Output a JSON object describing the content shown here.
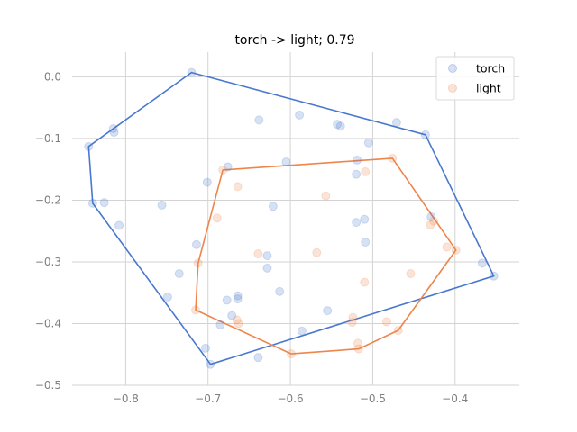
{
  "chart_data": {
    "type": "scatter",
    "title": "torch -> light; 0.79",
    "xlabel": "",
    "ylabel": "",
    "xlim": [
      -0.865,
      -0.322
    ],
    "ylim": [
      -0.5,
      0.04
    ],
    "xticks": [
      -0.8,
      -0.7,
      -0.6,
      -0.5,
      -0.4
    ],
    "xtick_labels": [
      "−0.8",
      "−0.7",
      "−0.6",
      "−0.5",
      "−0.4"
    ],
    "yticks": [
      0.0,
      -0.1,
      -0.2,
      -0.3,
      -0.4,
      -0.5
    ],
    "ytick_labels": [
      "0.0",
      "−0.1",
      "−0.2",
      "−0.3",
      "−0.4",
      "−0.5"
    ],
    "grid": true,
    "legend_position": "top-right",
    "series": [
      {
        "name": "torch",
        "color": "#4878cf",
        "points": [
          [
            -0.72,
            0.007
          ],
          [
            -0.845,
            -0.113
          ],
          [
            -0.815,
            -0.084
          ],
          [
            -0.814,
            -0.09
          ],
          [
            -0.84,
            -0.205
          ],
          [
            -0.826,
            -0.204
          ],
          [
            -0.808,
            -0.241
          ],
          [
            -0.756,
            -0.208
          ],
          [
            -0.638,
            -0.07
          ],
          [
            -0.589,
            -0.062
          ],
          [
            -0.543,
            -0.077
          ],
          [
            -0.539,
            -0.08
          ],
          [
            -0.471,
            -0.074
          ],
          [
            -0.436,
            -0.094
          ],
          [
            -0.505,
            -0.107
          ],
          [
            -0.519,
            -0.135
          ],
          [
            -0.52,
            -0.158
          ],
          [
            -0.605,
            -0.138
          ],
          [
            -0.701,
            -0.171
          ],
          [
            -0.676,
            -0.146
          ],
          [
            -0.621,
            -0.21
          ],
          [
            -0.52,
            -0.236
          ],
          [
            -0.51,
            -0.231
          ],
          [
            -0.429,
            -0.227
          ],
          [
            -0.714,
            -0.272
          ],
          [
            -0.509,
            -0.268
          ],
          [
            -0.628,
            -0.29
          ],
          [
            -0.628,
            -0.31
          ],
          [
            -0.735,
            -0.319
          ],
          [
            -0.749,
            -0.357
          ],
          [
            -0.664,
            -0.355
          ],
          [
            -0.664,
            -0.36
          ],
          [
            -0.677,
            -0.362
          ],
          [
            -0.613,
            -0.348
          ],
          [
            -0.555,
            -0.379
          ],
          [
            -0.671,
            -0.387
          ],
          [
            -0.685,
            -0.402
          ],
          [
            -0.586,
            -0.412
          ],
          [
            -0.703,
            -0.44
          ],
          [
            -0.697,
            -0.466
          ],
          [
            -0.639,
            -0.455
          ],
          [
            -0.367,
            -0.302
          ],
          [
            -0.353,
            -0.323
          ]
        ],
        "hull": [
          [
            -0.72,
            0.007
          ],
          [
            -0.436,
            -0.094
          ],
          [
            -0.353,
            -0.323
          ],
          [
            -0.697,
            -0.466
          ],
          [
            -0.84,
            -0.205
          ],
          [
            -0.845,
            -0.113
          ]
        ]
      },
      {
        "name": "light",
        "color": "#ee854a",
        "points": [
          [
            -0.682,
            -0.151
          ],
          [
            -0.664,
            -0.178
          ],
          [
            -0.557,
            -0.193
          ],
          [
            -0.509,
            -0.154
          ],
          [
            -0.476,
            -0.132
          ],
          [
            -0.689,
            -0.229
          ],
          [
            -0.712,
            -0.302
          ],
          [
            -0.639,
            -0.287
          ],
          [
            -0.568,
            -0.285
          ],
          [
            -0.43,
            -0.24
          ],
          [
            -0.426,
            -0.234
          ],
          [
            -0.41,
            -0.276
          ],
          [
            -0.399,
            -0.281
          ],
          [
            -0.454,
            -0.319
          ],
          [
            -0.51,
            -0.333
          ],
          [
            -0.715,
            -0.378
          ],
          [
            -0.665,
            -0.394
          ],
          [
            -0.663,
            -0.4
          ],
          [
            -0.524,
            -0.39
          ],
          [
            -0.525,
            -0.398
          ],
          [
            -0.483,
            -0.397
          ],
          [
            -0.469,
            -0.411
          ],
          [
            -0.518,
            -0.432
          ],
          [
            -0.517,
            -0.441
          ],
          [
            -0.599,
            -0.449
          ]
        ],
        "hull": [
          [
            -0.682,
            -0.151
          ],
          [
            -0.476,
            -0.132
          ],
          [
            -0.399,
            -0.281
          ],
          [
            -0.469,
            -0.411
          ],
          [
            -0.517,
            -0.441
          ],
          [
            -0.599,
            -0.449
          ],
          [
            -0.715,
            -0.378
          ],
          [
            -0.712,
            -0.302
          ]
        ]
      }
    ]
  }
}
